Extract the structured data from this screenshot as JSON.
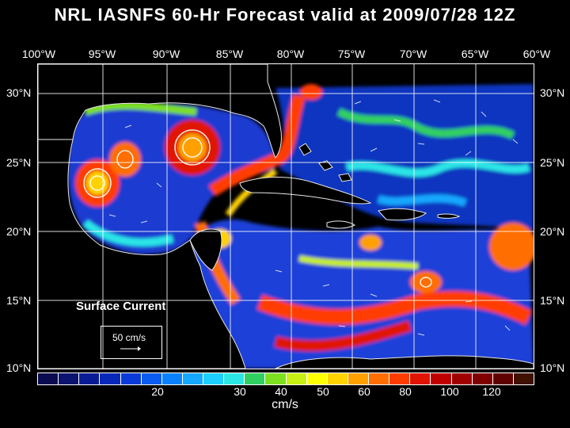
{
  "title": "NRL IASNFS  60-Hr Forecast valid at 2009/07/28 12Z",
  "longitudes": [
    "100°W",
    "95°W",
    "90°W",
    "85°W",
    "80°W",
    "75°W",
    "70°W",
    "65°W",
    "60°W"
  ],
  "latitudes": [
    "30°N",
    "25°N",
    "20°N",
    "15°N",
    "10°N"
  ],
  "legend": {
    "title": "Surface Current",
    "reference": "50 cm/s"
  },
  "colorbar": {
    "colors": [
      "#0a0a50",
      "#0a1470",
      "#0a1c95",
      "#0828b8",
      "#0a3ad8",
      "#0a5cf0",
      "#0a82ff",
      "#14a8ff",
      "#1ccfff",
      "#2ce6e6",
      "#30d060",
      "#7ce020",
      "#c8f014",
      "#ffff00",
      "#ffd200",
      "#ffa000",
      "#ff6e00",
      "#ff3c00",
      "#e01400",
      "#c00000",
      "#a00000",
      "#800000",
      "#600000",
      "#401000"
    ],
    "ticks": [
      "20",
      "30",
      "40",
      "50",
      "60",
      "80",
      "100",
      "120"
    ],
    "units": "cm/s"
  }
}
